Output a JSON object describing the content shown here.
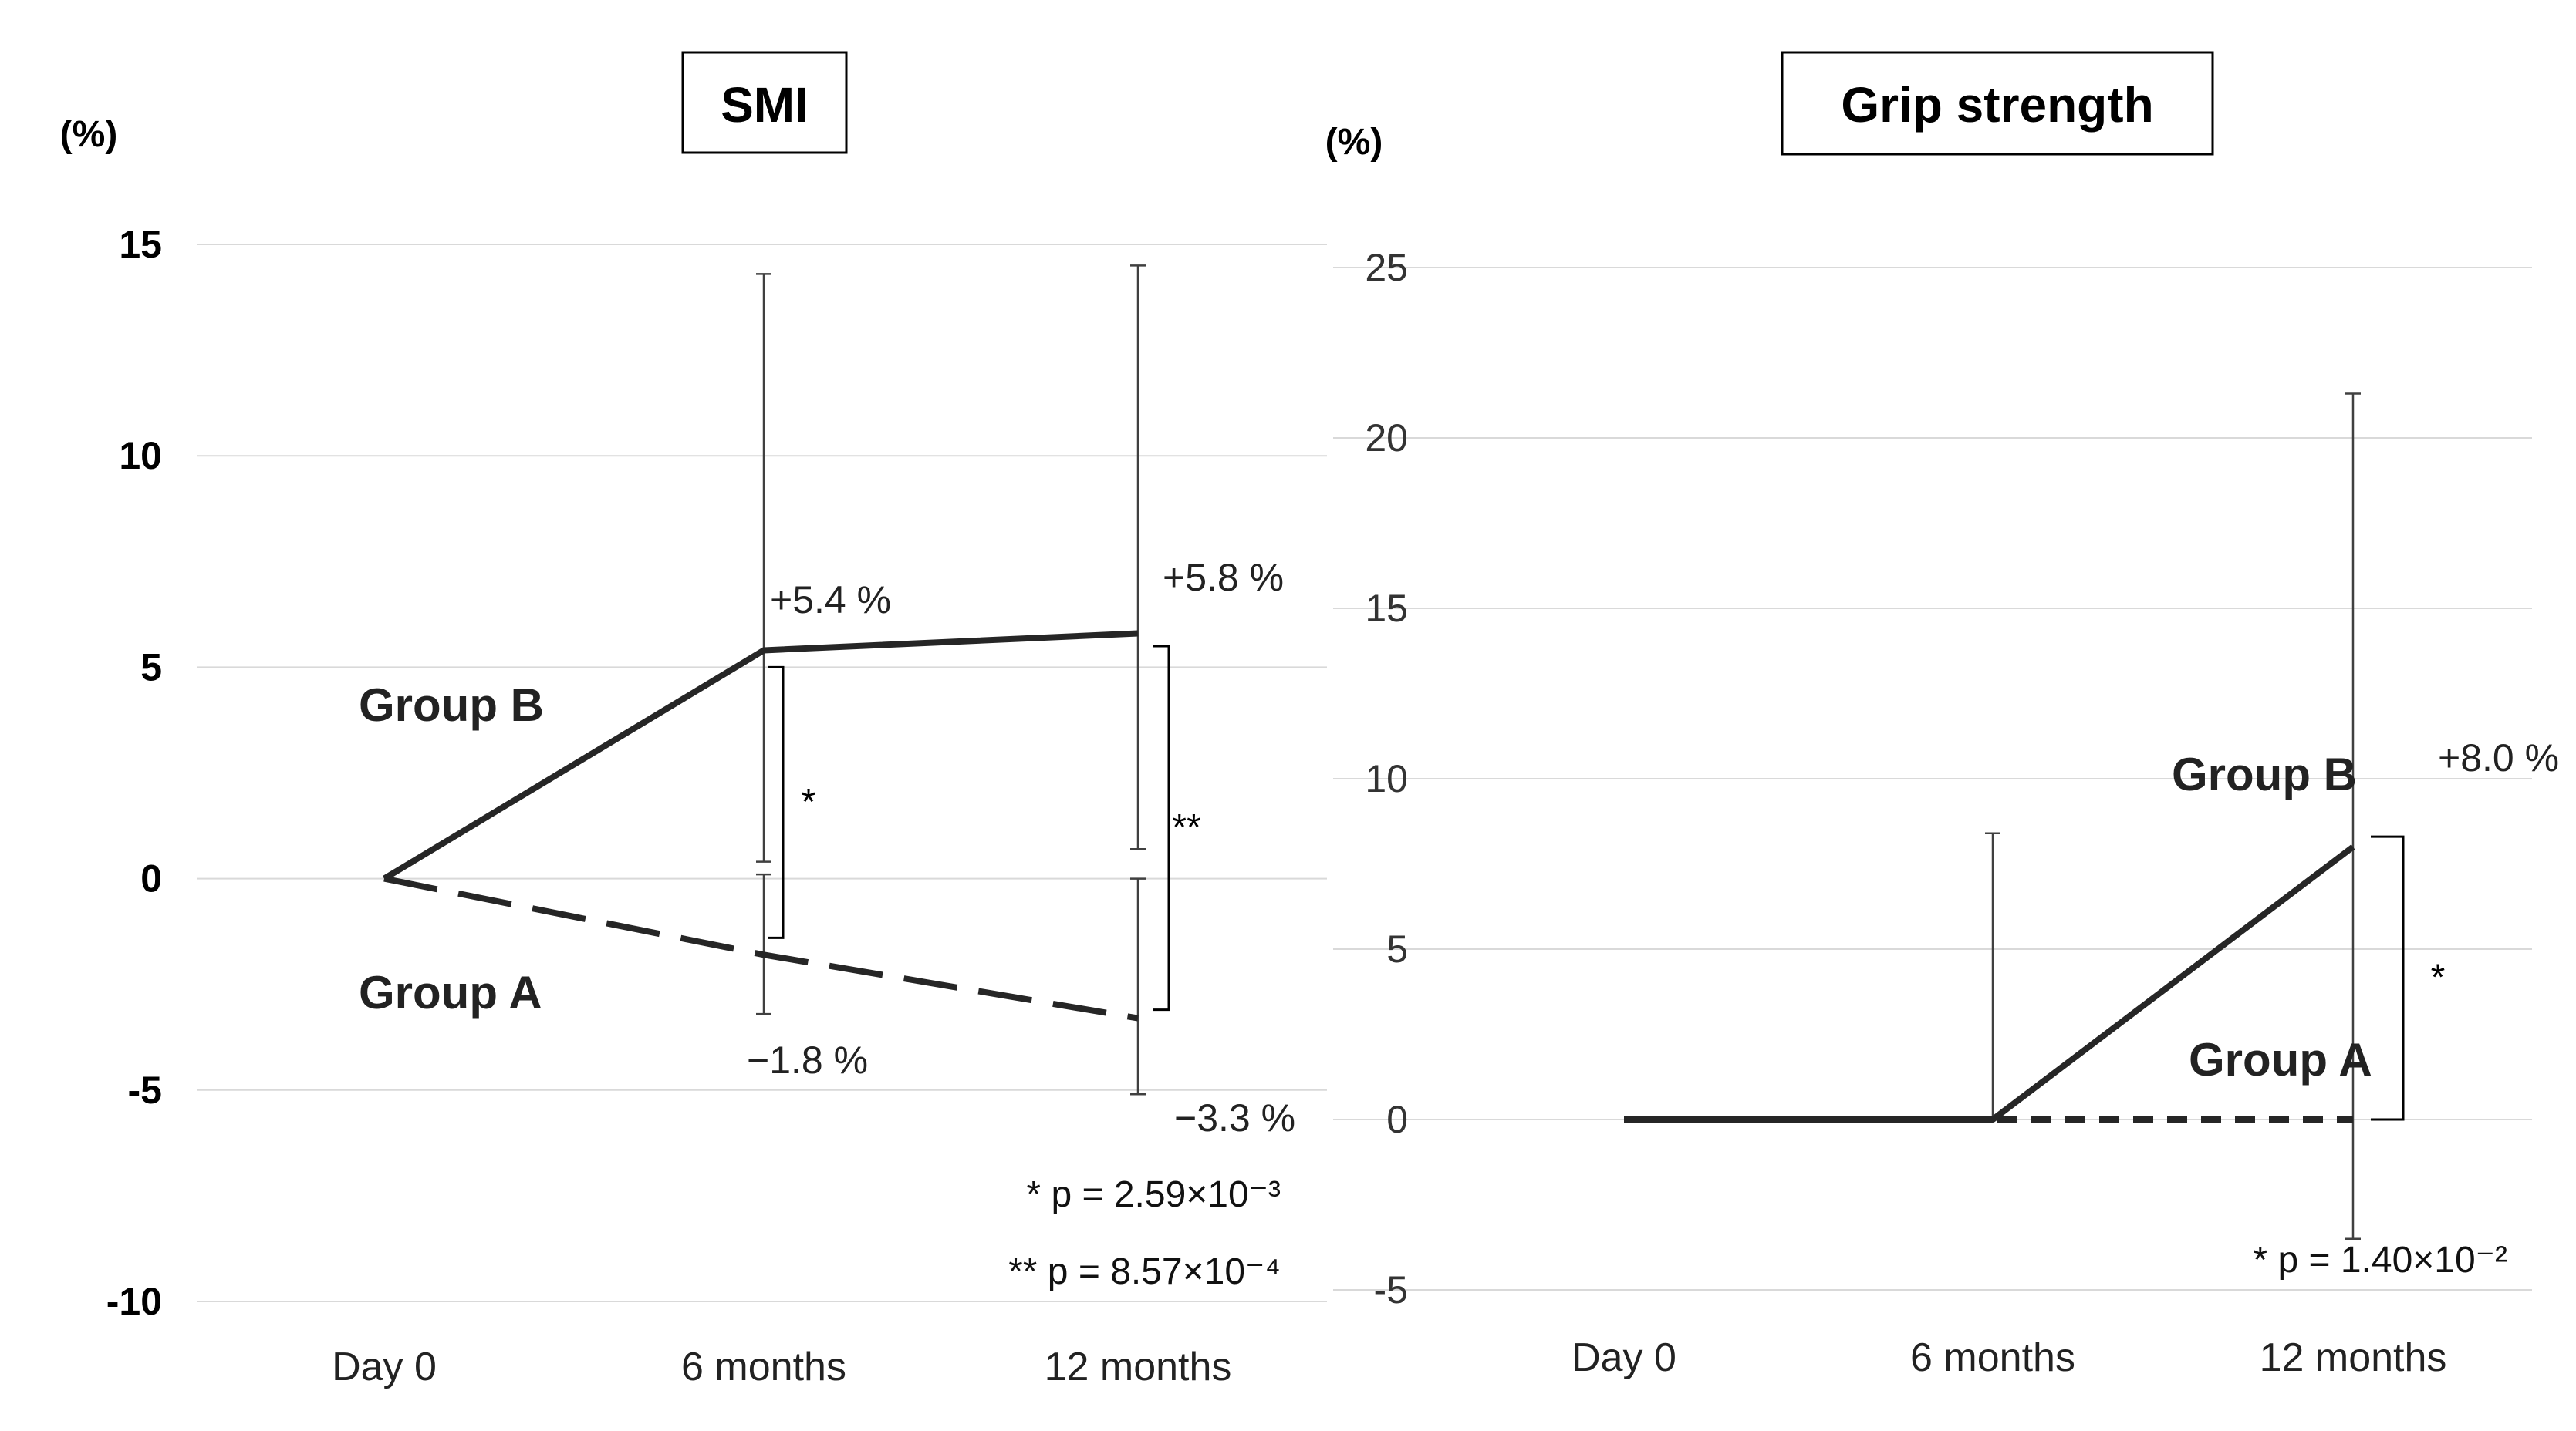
{
  "chart_data": [
    {
      "type": "line",
      "title": "SMI",
      "ylabel": "(%)",
      "ylim": [
        -10,
        15
      ],
      "yticks": [
        "15",
        "10",
        "5",
        "0",
        "-5",
        "-10"
      ],
      "categories": [
        "Day 0",
        "6 months",
        "12 months"
      ],
      "grid": true,
      "series": [
        {
          "name": "Group B",
          "style": "solid",
          "values": [
            0,
            5.4,
            5.8
          ],
          "value_labels": [
            "",
            "+5.4 %",
            "+5.8 %"
          ],
          "error_upper": [
            null,
            14.3,
            14.5
          ],
          "error_lower": [
            null,
            0.4,
            0.7
          ]
        },
        {
          "name": "Group A",
          "style": "dashed",
          "values": [
            0,
            -1.8,
            -3.3
          ],
          "value_labels": [
            "",
            "−1.8 %",
            "−3.3 %"
          ],
          "error_upper": [
            null,
            0.1,
            0.0
          ],
          "error_lower": [
            null,
            -3.2,
            -5.1
          ]
        }
      ],
      "significance": [
        {
          "category": "6 months",
          "marker": "*",
          "from": 5.0,
          "to": -1.4
        },
        {
          "category": "12 months",
          "marker": "**",
          "from": 5.5,
          "to": -3.1
        }
      ],
      "p_values": [
        "* p = 2.59×10⁻³",
        "** p = 8.57×10⁻⁴"
      ]
    },
    {
      "type": "line",
      "title": "Grip strength",
      "ylabel": "(%)",
      "ylim": [
        -5,
        25
      ],
      "yticks": [
        "25",
        "20",
        "15",
        "10",
        "5",
        "0",
        "-5"
      ],
      "categories": [
        "Day 0",
        "6 months",
        "12 months"
      ],
      "grid": true,
      "series": [
        {
          "name": "Group B",
          "style": "solid",
          "values": [
            0,
            0,
            8.0
          ],
          "value_labels": [
            "",
            "",
            "+8.0 %"
          ],
          "error_upper": [
            null,
            8.4,
            21.3
          ],
          "error_lower": [
            null,
            null,
            -3.5
          ]
        },
        {
          "name": "Group A",
          "style": "dashed",
          "values": [
            0,
            0,
            0
          ],
          "value_labels": [
            "",
            "",
            ""
          ],
          "error_upper": [
            null,
            null,
            null
          ],
          "error_lower": [
            null,
            null,
            null
          ]
        }
      ],
      "significance": [
        {
          "category": "12 months",
          "marker": "*",
          "from": 8.3,
          "to": 0
        }
      ],
      "p_values": [
        "* p = 1.40×10⁻²"
      ]
    }
  ],
  "colors": {
    "line": "#262626",
    "grid": "#d9d9d9",
    "error_bar": "#404040"
  }
}
